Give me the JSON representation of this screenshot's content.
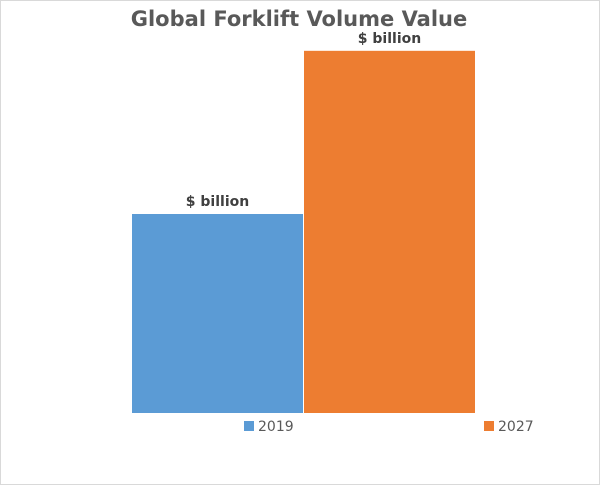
{
  "chart_data": {
    "type": "bar",
    "title": "Global Forklift Volume Value",
    "categories": [
      "2019",
      "2027"
    ],
    "values": [
      1.0,
      1.82
    ],
    "data_labels": [
      "$ billion",
      "$ billion"
    ],
    "colors": [
      "#5b9bd5",
      "#ed7d31"
    ],
    "legend": [
      "2019",
      "2027"
    ],
    "legend_position": "bottom",
    "ylim": [
      0,
      2.0
    ],
    "grid": false
  }
}
